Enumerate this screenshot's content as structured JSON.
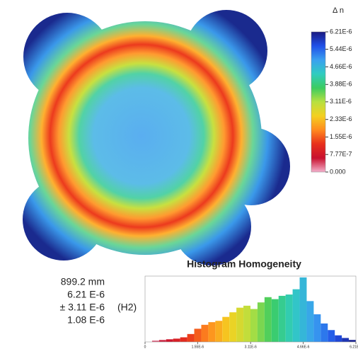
{
  "colorbar": {
    "title": "Δ n",
    "clim": [
      0,
      6.21e-06
    ],
    "colors": [
      "#f4b0cc",
      "#c8102e",
      "#e8301c",
      "#ff8a1e",
      "#f4d020",
      "#b8e040",
      "#3ccc60",
      "#30ccc0",
      "#3aa0f0",
      "#2050e8",
      "#1a1a80"
    ],
    "ticks": [
      {
        "value": 6.21e-06,
        "label": "6.21E-6"
      },
      {
        "value": 5.44e-06,
        "label": "5.44E-6"
      },
      {
        "value": 4.66e-06,
        "label": "4.66E-6"
      },
      {
        "value": 3.88e-06,
        "label": "3.88E-6"
      },
      {
        "value": 3.11e-06,
        "label": "3.11E-6"
      },
      {
        "value": 2.33e-06,
        "label": "2.33E-6"
      },
      {
        "value": 1.55e-06,
        "label": "1.55E-6"
      },
      {
        "value": 7.77e-07,
        "label": "7.77E-7"
      },
      {
        "value": 0,
        "label": "0.000"
      }
    ]
  },
  "stats": {
    "diameter": "899.2 mm",
    "pv": "6.21 E-6",
    "range": "± 3.11 E-6",
    "class": "(H2)",
    "rms": "1.08 E-6"
  },
  "chart_data": {
    "type": "histogram",
    "title": "Histogram Homogeneity",
    "bins": [
      0,
      2.07e-07,
      4.14e-07,
      6.21e-07,
      8.28e-07,
      1.035e-06,
      1.242e-06,
      1.449e-06,
      1.656e-06,
      1.863e-06,
      2.07e-06,
      2.277e-06,
      2.484e-06,
      2.691e-06,
      2.898e-06,
      3.105e-06,
      3.312e-06,
      3.519e-06,
      3.726e-06,
      3.933e-06,
      4.14e-06,
      4.347e-06,
      4.554e-06,
      4.761e-06,
      4.968e-06,
      5.175e-06,
      5.382e-06,
      5.589e-06,
      5.796e-06,
      6.003e-06,
      6.21e-06
    ],
    "counts": [
      0,
      2,
      3,
      4,
      5,
      7,
      12,
      20,
      26,
      30,
      32,
      38,
      45,
      52,
      55,
      50,
      60,
      68,
      65,
      70,
      72,
      80,
      98,
      62,
      42,
      28,
      18,
      10,
      6,
      3
    ],
    "xlim": [
      0,
      6.21e-06
    ],
    "ylim": [
      0,
      100
    ],
    "xticks": [
      {
        "value": 0,
        "label": "0"
      },
      {
        "value": 1.55e-06,
        "label": "1.55E-6"
      },
      {
        "value": 3.11e-06,
        "label": "3.11E-6"
      },
      {
        "value": 4.66e-06,
        "label": "4.66E-6"
      },
      {
        "value": 6.21e-06,
        "label": "6.21E-6"
      }
    ]
  }
}
